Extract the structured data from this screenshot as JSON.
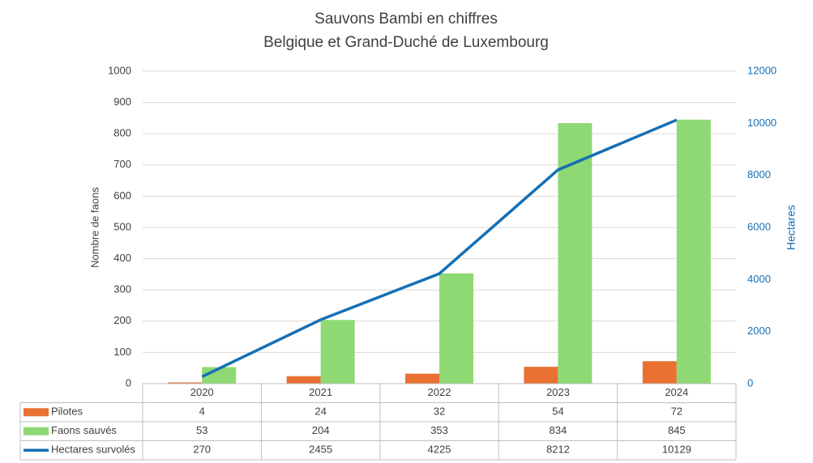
{
  "chart_data": {
    "type": "bar",
    "title": "Sauvons Bambi en chiffres",
    "subtitle": "Belgique et Grand-Duché de Luxembourg",
    "y_label": "Nombre de faons",
    "y2_label": "Hectares",
    "categories": [
      "2020",
      "2021",
      "2022",
      "2023",
      "2024"
    ],
    "series": [
      {
        "name": "Pilotes",
        "color": "#e97132",
        "type": "bar",
        "values": [
          4,
          24,
          32,
          54,
          72
        ]
      },
      {
        "name": "Faons sauvés",
        "color": "#8ed973",
        "type": "bar",
        "values": [
          53,
          204,
          353,
          834,
          845
        ]
      },
      {
        "name": "Hectares survolés",
        "color": "#156fb5",
        "type": "line",
        "axis": "y2",
        "values": [
          270,
          2455,
          4225,
          8212,
          10129
        ]
      }
    ],
    "ylim": [
      0,
      1000
    ],
    "yticks": [
      0,
      100,
      200,
      300,
      400,
      500,
      600,
      700,
      800,
      900,
      1000
    ],
    "y2lim": [
      0,
      12000
    ],
    "y2ticks": [
      0,
      2000,
      4000,
      6000,
      8000,
      10000,
      12000
    ],
    "grid": true,
    "data_table": true
  }
}
